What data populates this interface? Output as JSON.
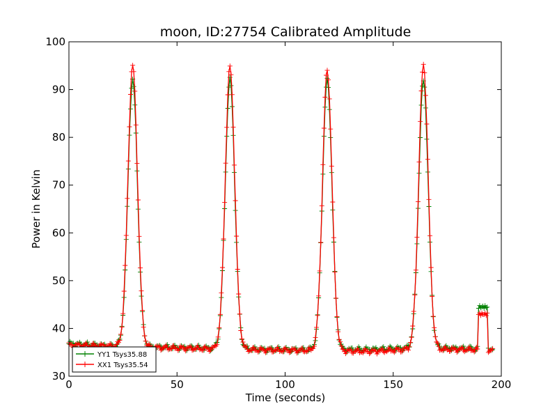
{
  "chart_data": {
    "type": "line",
    "title": "moon, ID:27754 Calibrated Amplitude",
    "xlabel": "Time (seconds)",
    "ylabel": "Power in Kelvin",
    "xlim": [
      0,
      200
    ],
    "ylim": [
      30,
      100
    ],
    "xticks": [
      "0",
      "50",
      "100",
      "150",
      "200"
    ],
    "yticks": [
      "30",
      "40",
      "50",
      "60",
      "70",
      "80",
      "90",
      "100"
    ],
    "grid": false,
    "legend_position": "lower-left",
    "marker": "+",
    "series": [
      {
        "name": "YY1 Tsys35.88",
        "color": "#008000",
        "baseline": [
          [
            0,
            36.8
          ],
          [
            20,
            36.3
          ],
          [
            40,
            36.1
          ],
          [
            60,
            35.9
          ],
          [
            90,
            35.6
          ],
          [
            110,
            35.5
          ],
          [
            140,
            35.6
          ],
          [
            160,
            35.9
          ],
          [
            180,
            35.8
          ],
          [
            195,
            35.7
          ]
        ],
        "peaks": [
          {
            "center": 29.5,
            "height": 92.0,
            "sigma": 2.2
          },
          {
            "center": 74.5,
            "height": 92.0,
            "sigma": 2.2
          },
          {
            "center": 119.5,
            "height": 91.8,
            "sigma": 2.2
          },
          {
            "center": 164.0,
            "height": 91.8,
            "sigma": 2.2
          }
        ],
        "steps": [
          {
            "from": 189.3,
            "to": 193.8,
            "value": 44.5
          }
        ],
        "x_range": [
          0,
          196
        ],
        "sample_interval": 0.5
      },
      {
        "name": "XX1 Tsys35.54",
        "color": "#ff0000",
        "baseline": [
          [
            0,
            36.5
          ],
          [
            20,
            36.3
          ],
          [
            40,
            36.0
          ],
          [
            60,
            35.8
          ],
          [
            90,
            35.5
          ],
          [
            110,
            35.4
          ],
          [
            140,
            35.2
          ],
          [
            160,
            35.7
          ],
          [
            180,
            35.6
          ],
          [
            195,
            35.5
          ]
        ],
        "peaks": [
          {
            "center": 29.5,
            "height": 95.0,
            "sigma": 2.2
          },
          {
            "center": 74.5,
            "height": 94.7,
            "sigma": 2.2
          },
          {
            "center": 119.5,
            "height": 94.0,
            "sigma": 2.2
          },
          {
            "center": 164.0,
            "height": 95.2,
            "sigma": 2.2
          }
        ],
        "steps": [
          {
            "from": 189.3,
            "to": 193.8,
            "value": 43.0
          }
        ],
        "x_range": [
          0,
          196
        ],
        "sample_interval": 0.5
      }
    ]
  }
}
